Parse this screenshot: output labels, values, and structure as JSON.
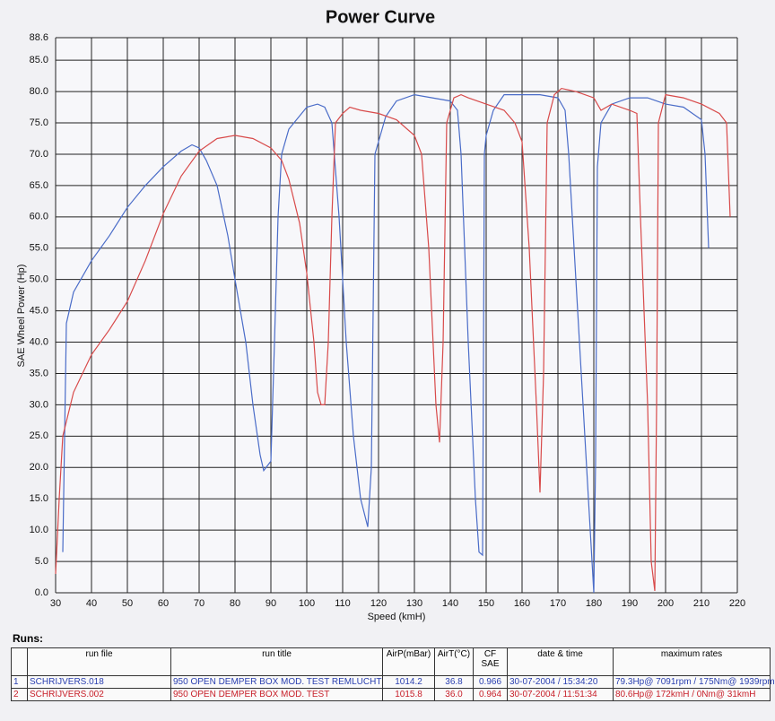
{
  "chart_data": {
    "type": "line",
    "title": "Power Curve",
    "x_label": "Speed (kmH)",
    "y_label": "SAE Wheel Power (Hp)",
    "xlim": [
      30,
      220
    ],
    "xticks": [
      30,
      40,
      50,
      60,
      70,
      80,
      90,
      100,
      110,
      120,
      130,
      140,
      150,
      160,
      170,
      180,
      190,
      200,
      210,
      220
    ],
    "ylim": [
      0,
      88.6
    ],
    "yticks": [
      {
        "value": 0,
        "label": "0.0"
      },
      {
        "value": 5,
        "label": "5.0"
      },
      {
        "value": 10,
        "label": "10.0"
      },
      {
        "value": 15,
        "label": "15.0"
      },
      {
        "value": 20,
        "label": "20.0"
      },
      {
        "value": 25,
        "label": "25.0"
      },
      {
        "value": 30,
        "label": "30.0"
      },
      {
        "value": 35,
        "label": "35.0"
      },
      {
        "value": 40,
        "label": "40.0"
      },
      {
        "value": 45,
        "label": "45.0"
      },
      {
        "value": 50,
        "label": "50.0"
      },
      {
        "value": 55,
        "label": "55.0"
      },
      {
        "value": 60,
        "label": "60.0"
      },
      {
        "value": 65,
        "label": "65.0"
      },
      {
        "value": 70,
        "label": "70.0"
      },
      {
        "value": 75,
        "label": "75.0"
      },
      {
        "value": 80,
        "label": "80.0"
      },
      {
        "value": 85,
        "label": "85.0"
      },
      88.6
    ],
    "grid": true,
    "series": [
      {
        "color": "#4a6cc8",
        "x": [
          32,
          33,
          35,
          40,
          45,
          50,
          55,
          60,
          65,
          68,
          70,
          72,
          75,
          78,
          80,
          83,
          85,
          87,
          88,
          90,
          91,
          92,
          93,
          95,
          100,
          103,
          105,
          107,
          109,
          111,
          113,
          115,
          117,
          118,
          119,
          120,
          122,
          125,
          130,
          135,
          140,
          142,
          143,
          145,
          147,
          148,
          149,
          149.5,
          150,
          152,
          155,
          160,
          165,
          170,
          172,
          173,
          175,
          177,
          179,
          180,
          180.5,
          181,
          182,
          185,
          190,
          195,
          200,
          205,
          210,
          211,
          212
        ],
        "values": [
          6.5,
          43,
          48,
          53,
          57,
          61.5,
          65,
          68,
          70.5,
          71.5,
          71,
          69,
          65,
          57,
          50,
          40,
          30,
          22,
          19.5,
          21,
          40,
          60,
          70,
          74,
          77.5,
          78,
          77.5,
          75,
          60,
          40,
          25,
          15,
          10.5,
          20,
          70,
          72,
          76,
          78.5,
          79.5,
          79,
          78.5,
          77,
          70,
          40,
          15,
          6.5,
          6,
          70,
          73,
          77,
          79.5,
          79.5,
          79.5,
          79,
          77,
          70,
          50,
          30,
          10,
          0,
          21,
          68,
          75,
          78,
          79,
          79,
          78,
          77.5,
          75.5,
          70,
          55
        ]
      },
      {
        "color": "#d84a4a",
        "x": [
          30,
          31,
          32,
          35,
          40,
          45,
          50,
          55,
          60,
          65,
          70,
          75,
          80,
          85,
          90,
          93,
          95,
          98,
          100,
          102,
          103,
          104,
          105,
          106,
          107,
          108,
          110,
          112,
          115,
          120,
          125,
          130,
          132,
          134,
          136,
          137,
          138,
          139,
          141,
          143,
          145,
          150,
          155,
          158,
          160,
          162,
          164,
          165,
          166,
          167,
          169,
          171,
          175,
          180,
          182,
          185,
          190,
          192,
          193,
          195,
          196,
          197,
          197.5,
          198,
          200,
          205,
          210,
          215,
          217,
          218
        ],
        "values": [
          3,
          15,
          25,
          32,
          38,
          42,
          46.5,
          53,
          60.5,
          66.5,
          70.5,
          72.5,
          73,
          72.5,
          71,
          69,
          66,
          59,
          51,
          40,
          32,
          30,
          30,
          40,
          60,
          75,
          76.5,
          77.5,
          77,
          76.5,
          75.5,
          73,
          70,
          55,
          30,
          24,
          40,
          75,
          79,
          79.5,
          79,
          78,
          77,
          75,
          72,
          55,
          30,
          16,
          35,
          75,
          79.5,
          80.5,
          80,
          79,
          77,
          78,
          77,
          76.5,
          60,
          30,
          5,
          0.3,
          30,
          75,
          79.5,
          79,
          78,
          76.5,
          75,
          60
        ]
      }
    ]
  },
  "runs_table": {
    "title": "Runs:",
    "header": [
      "run file",
      "run title",
      "AirP(mBar)",
      "AirT(°C)",
      "CF SAE",
      "date & time",
      "maximum rates"
    ],
    "rows": [
      [
        "1",
        "SCHRIJVERS.018",
        "950  OPEN DEMPER  BOX MOD. TEST REMLUCHT",
        "1014.2",
        "36.8",
        "0.966",
        "30-07-2004 / 15:34:20",
        "79.3Hp@ 7091rpm / 175Nm@ 1939rpm"
      ],
      [
        "2",
        "SCHRIJVERS.002",
        "950  OPEN DEMPER  BOX MOD. TEST",
        "1015.8",
        "36.0",
        "0.964",
        "30-07-2004 / 11:51:34",
        "80.6Hp@ 172kmH / 0Nm@ 31kmH"
      ]
    ]
  }
}
